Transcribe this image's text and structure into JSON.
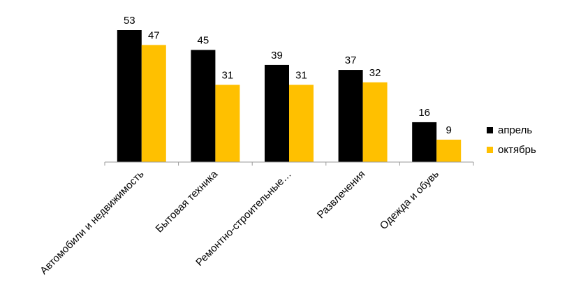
{
  "chart_data": {
    "type": "bar",
    "categories": [
      "Автомобили и недвижимость",
      "Бытовая техника",
      "Ремонтно-строительные…",
      "Развлечения",
      "Одежда и обувь"
    ],
    "series": [
      {
        "name": "апрель",
        "color": "#000000",
        "values": [
          53,
          45,
          39,
          37,
          16
        ]
      },
      {
        "name": "октябрь",
        "color": "#FFC000",
        "values": [
          47,
          31,
          31,
          32,
          9
        ]
      }
    ],
    "ylim": [
      0,
      53
    ],
    "grid": false,
    "legend_position": "right",
    "data_labels": true
  }
}
